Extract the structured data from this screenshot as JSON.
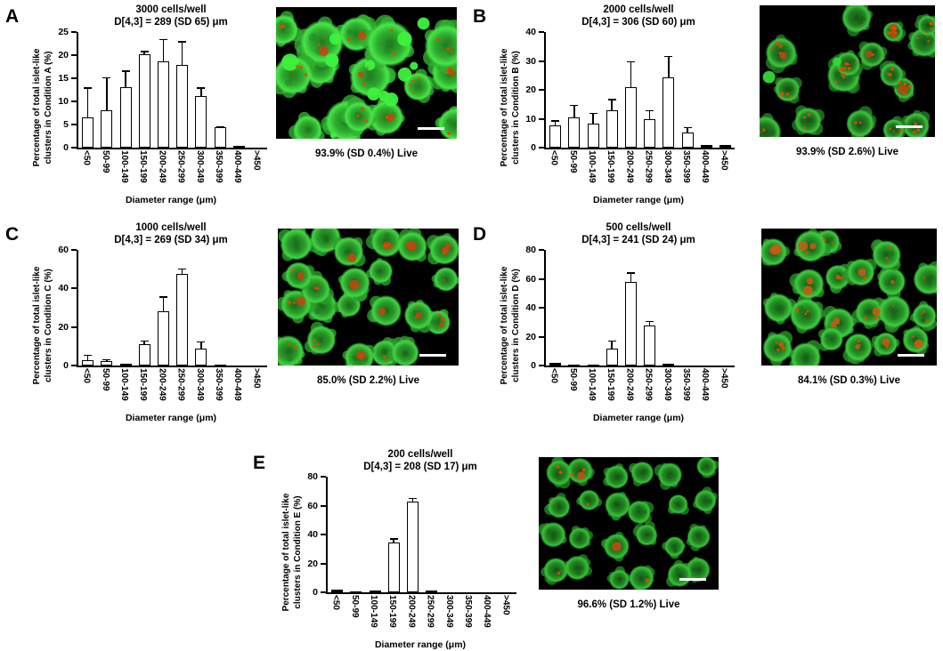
{
  "figure": {
    "background_color": "#ffffff",
    "bar_fill": "#ffffff",
    "bar_border": "#000000",
    "live_stain_color": "#2fae2f",
    "dead_stain_color": "#d94b00"
  },
  "panels": [
    {
      "letter": "A",
      "live_caption": "93.9% (SD 0.4%) Live",
      "micrograph": {
        "scale_bar": true,
        "seed": 7,
        "cluster_count": 15,
        "radius_min": 16,
        "radius_max": 26,
        "irregularity": 0.85,
        "jitter": 0.9,
        "colors": [
          "#1f7a1f",
          "#2fae2f",
          "#47e547"
        ],
        "bright_patch_count": 12,
        "bright_color": "#3df23d",
        "red_blob_count": 5,
        "red_blob_color": "#c8440e",
        "red_spot_count": 40
      }
    },
    {
      "letter": "B",
      "live_caption": "93.9% (SD 2.6%) Live",
      "micrograph": {
        "scale_bar": true,
        "seed": 13,
        "cluster_count": 16,
        "radius_min": 11,
        "radius_max": 21,
        "irregularity": 0.6,
        "jitter": 0.8,
        "colors": [
          "#135413",
          "#247f24",
          "#3bc63b"
        ],
        "bright_patch_count": 2,
        "bright_color": "#35d835",
        "red_blob_count": 6,
        "red_blob_color": "#c8440e",
        "red_spot_count": 55
      }
    },
    {
      "letter": "C",
      "live_caption": "85.0% (SD 2.2%) Live",
      "micrograph": {
        "scale_bar": true,
        "seed": 21,
        "cluster_count": 22,
        "radius_min": 13,
        "radius_max": 19,
        "irregularity": 0.35,
        "jitter": 0.55,
        "colors": [
          "#1a6b1a",
          "#2a9c2a",
          "#42d442"
        ],
        "bright_patch_count": 0,
        "bright_color": "#35d835",
        "red_blob_count": 14,
        "red_blob_color": "#c8440e",
        "red_spot_count": 30
      }
    },
    {
      "letter": "D",
      "live_caption": "84.1% (SD 0.3%) Live",
      "micrograph": {
        "scale_bar": true,
        "seed": 29,
        "cluster_count": 21,
        "radius_min": 13,
        "radius_max": 19,
        "irregularity": 0.4,
        "jitter": 0.55,
        "colors": [
          "#175e17",
          "#279327",
          "#3ecd3e"
        ],
        "bright_patch_count": 0,
        "bright_color": "#35d835",
        "red_blob_count": 15,
        "red_blob_color": "#cc5a14",
        "red_spot_count": 30
      }
    },
    {
      "letter": "E",
      "live_caption": "96.6% (SD 1.2%) Live",
      "micrograph": {
        "scale_bar": true,
        "seed": 37,
        "cluster_count": 24,
        "radius_min": 11,
        "radius_max": 15,
        "irregularity": 0.25,
        "jitter": 0.45,
        "colors": [
          "#145614",
          "#228622",
          "#36c236"
        ],
        "bright_patch_count": 0,
        "bright_color": "#35d835",
        "red_blob_count": 2,
        "red_blob_color": "#cc4a10",
        "red_spot_count": 10
      }
    }
  ],
  "chart_data": [
    {
      "type": "bar",
      "title": "3000 cells/well",
      "subtitle": "D[4,3] = 289 (SD 65) μm",
      "ylabel": "Percentage of total islet-like clusters in Condition A (%)",
      "ylabel_lines": [
        "Percentage of total islet-like",
        "clusters in Condition A (%)"
      ],
      "xlabel": "Diameter range  (μm)",
      "categories": [
        "<50",
        "50-99",
        "100-149",
        "150-199",
        "200-249",
        "250-299",
        "300-349",
        "350-399",
        "400-449",
        ">450"
      ],
      "values": [
        6.5,
        8.1,
        13.1,
        20.2,
        18.6,
        17.8,
        11.2,
        4.4,
        0.4,
        0
      ],
      "errors": [
        6.5,
        7.1,
        3.6,
        0.7,
        4.9,
        5.2,
        1.8,
        0.2,
        0,
        0
      ],
      "ylim": [
        0,
        25
      ],
      "yticks": [
        0,
        5,
        10,
        15,
        20,
        25
      ],
      "grid": false,
      "legend": null
    },
    {
      "type": "bar",
      "title": "2000 cells/well",
      "subtitle": "D[4,3] = 306 (SD 60) μm",
      "ylabel": "Percentage of total islet-like clusters in Condition B (%)",
      "ylabel_lines": [
        "Percentage of total islet-like",
        "clusters in Condition B (%)"
      ],
      "xlabel": "Diameter range  (μm)",
      "categories": [
        "<50",
        "50-99",
        "100-149",
        "150-199",
        "200-249",
        "250-299",
        "300-349",
        "350-399",
        "400-449",
        ">450"
      ],
      "values": [
        7.8,
        10.4,
        8.2,
        13.0,
        21.0,
        9.9,
        24.2,
        5.2,
        0.8,
        0.8
      ],
      "errors": [
        1.7,
        4.4,
        3.9,
        3.9,
        8.9,
        3.1,
        7.6,
        1.9,
        0,
        0
      ],
      "ylim": [
        0,
        40
      ],
      "yticks": [
        0,
        10,
        20,
        30,
        40
      ],
      "grid": false,
      "legend": null
    },
    {
      "type": "bar",
      "title": "1000 cells/well",
      "subtitle": "D[4,3] = 269 (SD 34) μm",
      "ylabel": "Percentage of total islet-like clusters in Condition C (%)",
      "ylabel_lines": [
        "Percentage of total islet-like",
        "clusters in Condition C (%)"
      ],
      "xlabel": "Diameter range  (μm)",
      "categories": [
        "<50",
        "50-99",
        "100-149",
        "150-199",
        "200-249",
        "250-299",
        "300-349",
        "350-399",
        "400-449",
        ">450"
      ],
      "values": [
        3.0,
        2.3,
        0.9,
        10.9,
        28.0,
        47.6,
        8.6,
        0.5,
        0,
        0
      ],
      "errors": [
        2.6,
        1.1,
        0,
        2.2,
        8.0,
        2.9,
        3.9,
        0,
        0,
        0
      ],
      "ylim": [
        0,
        60
      ],
      "yticks": [
        0,
        20,
        40,
        60
      ],
      "grid": false,
      "legend": null
    },
    {
      "type": "bar",
      "title": "500 cells/well",
      "subtitle": "D[4,3] = 241 (SD 24) μm",
      "ylabel": "Percentage of total islet-like clusters in Condition D (%)",
      "ylabel_lines": [
        "Percentage of total islet-like",
        "clusters in Condition D (%)"
      ],
      "xlabel": "Diameter range  (μm)",
      "categories": [
        "<50",
        "50-99",
        "100-149",
        "150-199",
        "200-249",
        "250-299",
        "300-349",
        "350-399",
        "400-449",
        ">450"
      ],
      "values": [
        2.1,
        0.6,
        0.6,
        12.0,
        57.9,
        27.5,
        1.4,
        0,
        0,
        0
      ],
      "errors": [
        0,
        0,
        0,
        5.5,
        6.6,
        3.4,
        0,
        0,
        0,
        0
      ],
      "ylim": [
        0,
        80
      ],
      "yticks": [
        0,
        20,
        40,
        60,
        80
      ],
      "grid": false,
      "legend": null
    },
    {
      "type": "bar",
      "title": "200 cells/well",
      "subtitle": "D[4,3] = 208 (SD 17) μm",
      "ylabel": "Percentage of total islet-like clusters in Condition E (%)",
      "ylabel_lines": [
        "Percentage of total islet-like",
        "clusters in Condition E (%)"
      ],
      "xlabel": "Diameter range  (μm)",
      "categories": [
        "<50",
        "50-99",
        "100-149",
        "150-199",
        "200-249",
        "250-299",
        "300-349",
        "350-399",
        "400-449",
        ">450"
      ],
      "values": [
        1.9,
        0.4,
        1.0,
        34.6,
        62.5,
        1.5,
        0,
        0,
        0,
        0
      ],
      "errors": [
        0,
        0,
        0,
        2.9,
        3.0,
        0,
        0,
        0,
        0,
        0
      ],
      "ylim": [
        0,
        80
      ],
      "yticks": [
        0,
        20,
        40,
        60,
        80
      ],
      "grid": false,
      "legend": null
    }
  ]
}
